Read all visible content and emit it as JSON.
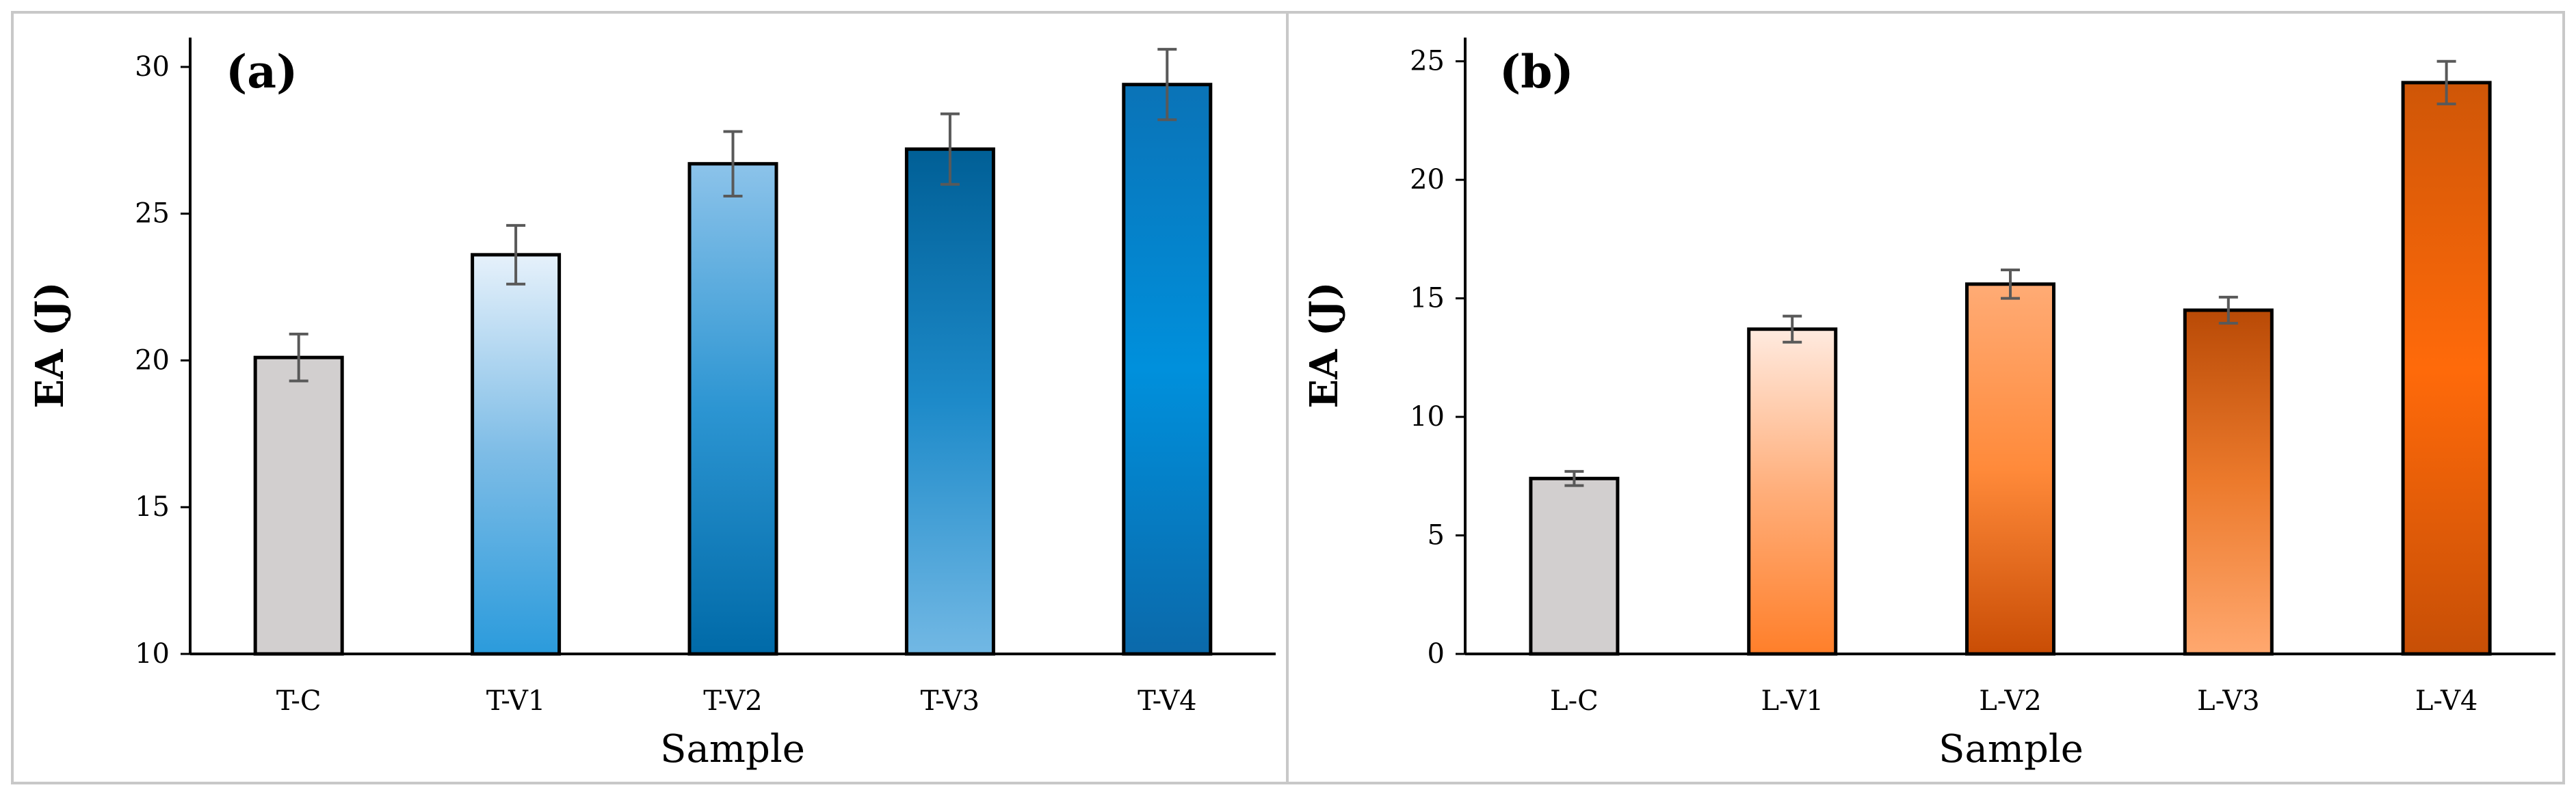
{
  "chart_data": [
    {
      "panel_label": "(a)",
      "type": "bar",
      "categories": [
        "T-C",
        "T-V1",
        "T-V2",
        "T-V3",
        "T-V4"
      ],
      "values": [
        20.1,
        23.6,
        26.7,
        27.2,
        29.4
      ],
      "errors": [
        0.8,
        1.0,
        1.1,
        1.2,
        1.2
      ],
      "xlabel": "Sample",
      "ylabel": "EA (J)",
      "ylim": [
        10,
        31
      ],
      "yticks": [
        10,
        15,
        20,
        25,
        30
      ],
      "bar_colors": [
        [
          "#d2cfcf",
          "#d2cfcf"
        ],
        [
          "#e6f1fb",
          "#2b9bdc"
        ],
        [
          "#8cc3ea",
          "#006aa8"
        ],
        [
          "#005f96",
          "#72b8e4"
        ],
        [
          "#0a73b7",
          "#0b69aa"
        ]
      ],
      "bar_mid_colors": [
        "#d2cfcf",
        "#7dbce6",
        "#2c95d2",
        "#1d8ac9",
        "#0090dc"
      ]
    },
    {
      "panel_label": "(b)",
      "type": "bar",
      "categories": [
        "L-C",
        "L-V1",
        "L-V2",
        "L-V3",
        "L-V4"
      ],
      "values": [
        7.4,
        13.7,
        15.6,
        14.5,
        24.1
      ],
      "errors": [
        0.3,
        0.55,
        0.6,
        0.55,
        0.9
      ],
      "xlabel": "Sample",
      "ylabel": "EA (J)",
      "ylim": [
        0,
        26
      ],
      "yticks": [
        0,
        5,
        10,
        15,
        20,
        25
      ],
      "bar_colors": [
        [
          "#d2cfcf",
          "#d2cfcf"
        ],
        [
          "#ffeadf",
          "#ff7f2a"
        ],
        [
          "#ffab75",
          "#c94d05"
        ],
        [
          "#b94a06",
          "#ffa86f"
        ],
        [
          "#cf5607",
          "#c74f06"
        ]
      ],
      "bar_mid_colors": [
        "#d2cfcf",
        "#ffae7a",
        "#ff8a3a",
        "#ec7a2c",
        "#ff6a0a"
      ]
    }
  ]
}
